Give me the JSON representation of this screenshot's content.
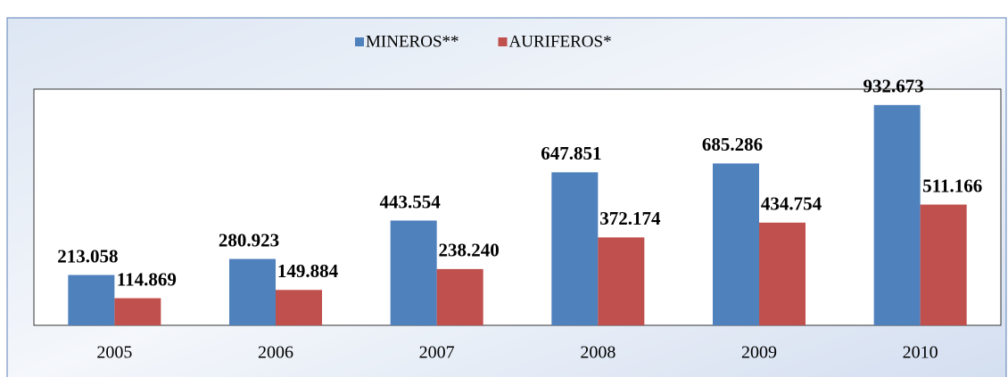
{
  "chart_data": {
    "type": "bar",
    "categories": [
      "2005",
      "2006",
      "2007",
      "2008",
      "2009",
      "2010"
    ],
    "series": [
      {
        "name": "MINEROS**",
        "color": "#4f81bd",
        "values": [
          213058,
          280923,
          443554,
          647851,
          685286,
          932673
        ],
        "value_labels": [
          "213.058",
          "280.923",
          "443.554",
          "647.851",
          "685.286",
          "932.673"
        ]
      },
      {
        "name": "AURIFEROS*",
        "color": "#c0504d",
        "values": [
          114869,
          149884,
          238240,
          372174,
          434754,
          511166
        ],
        "value_labels": [
          "114.869",
          "149.884",
          "238.240",
          "372.174",
          "434.754",
          "511.166"
        ]
      }
    ],
    "ylim": [
      0,
      1000000
    ],
    "legend": "top"
  }
}
